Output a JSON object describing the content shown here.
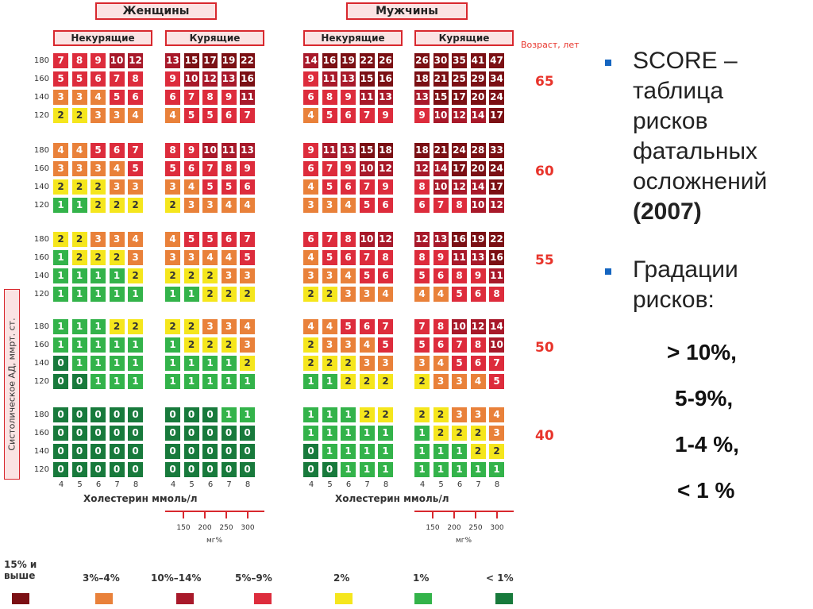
{
  "header": {
    "women": "Женщины",
    "men": "Мужчины",
    "nonsmokers": "Некурящие",
    "smokers": "Курящие",
    "age_title": "Возраст, лет"
  },
  "sbp_label": "Систолическое АД, ммрт. ст.",
  "bp_levels": [
    "180",
    "160",
    "140",
    "120"
  ],
  "chol_values": [
    "4",
    "5",
    "6",
    "7",
    "8"
  ],
  "xlabel": "Холестерин ммоль/л",
  "mg_values": [
    "150",
    "200",
    "250",
    "300"
  ],
  "mg_unit": "мг%",
  "ages": [
    "65",
    "60",
    "55",
    "50",
    "40"
  ],
  "grid": [
    {
      "age": "65",
      "women_nonsmoke": [
        [
          "7",
          "8",
          "9",
          "10",
          "12"
        ],
        [
          "5",
          "5",
          "6",
          "7",
          "8"
        ],
        [
          "3",
          "3",
          "4",
          "5",
          "6"
        ],
        [
          "2",
          "2",
          "3",
          "3",
          "4"
        ]
      ],
      "women_smoke": [
        [
          "13",
          "15",
          "17",
          "19",
          "22"
        ],
        [
          "9",
          "10",
          "12",
          "13",
          "16"
        ],
        [
          "6",
          "7",
          "8",
          "9",
          "11"
        ],
        [
          "4",
          "5",
          "5",
          "6",
          "7"
        ]
      ],
      "men_nonsmoke": [
        [
          "14",
          "16",
          "19",
          "22",
          "26"
        ],
        [
          "9",
          "11",
          "13",
          "15",
          "16"
        ],
        [
          "6",
          "8",
          "9",
          "11",
          "13"
        ],
        [
          "4",
          "5",
          "6",
          "7",
          "9"
        ]
      ],
      "men_smoke": [
        [
          "26",
          "30",
          "35",
          "41",
          "47"
        ],
        [
          "18",
          "21",
          "25",
          "29",
          "34"
        ],
        [
          "13",
          "15",
          "17",
          "20",
          "24"
        ],
        [
          "9",
          "10",
          "12",
          "14",
          "17"
        ]
      ]
    },
    {
      "age": "60",
      "women_nonsmoke": [
        [
          "4",
          "4",
          "5",
          "6",
          "7"
        ],
        [
          "3",
          "3",
          "3",
          "4",
          "5"
        ],
        [
          "2",
          "2",
          "2",
          "3",
          "3"
        ],
        [
          "1",
          "1",
          "2",
          "2",
          "2"
        ]
      ],
      "women_smoke": [
        [
          "8",
          "9",
          "10",
          "11",
          "13"
        ],
        [
          "5",
          "6",
          "7",
          "8",
          "9"
        ],
        [
          "3",
          "4",
          "5",
          "5",
          "6"
        ],
        [
          "2",
          "3",
          "3",
          "4",
          "4"
        ]
      ],
      "men_nonsmoke": [
        [
          "9",
          "11",
          "13",
          "15",
          "18"
        ],
        [
          "6",
          "7",
          "9",
          "10",
          "12"
        ],
        [
          "4",
          "5",
          "6",
          "7",
          "9"
        ],
        [
          "3",
          "3",
          "4",
          "5",
          "6"
        ]
      ],
      "men_smoke": [
        [
          "18",
          "21",
          "24",
          "28",
          "33"
        ],
        [
          "12",
          "14",
          "17",
          "20",
          "24"
        ],
        [
          "8",
          "10",
          "12",
          "14",
          "17"
        ],
        [
          "6",
          "7",
          "8",
          "10",
          "12"
        ]
      ]
    },
    {
      "age": "55",
      "women_nonsmoke": [
        [
          "2",
          "2",
          "3",
          "3",
          "4"
        ],
        [
          "1",
          "2",
          "2",
          "2",
          "3"
        ],
        [
          "1",
          "1",
          "1",
          "1",
          "2"
        ],
        [
          "1",
          "1",
          "1",
          "1",
          "1"
        ]
      ],
      "women_smoke": [
        [
          "4",
          "5",
          "5",
          "6",
          "7"
        ],
        [
          "3",
          "3",
          "4",
          "4",
          "5"
        ],
        [
          "2",
          "2",
          "2",
          "3",
          "3"
        ],
        [
          "1",
          "1",
          "2",
          "2",
          "2"
        ]
      ],
      "men_nonsmoke": [
        [
          "6",
          "7",
          "8",
          "10",
          "12"
        ],
        [
          "4",
          "5",
          "6",
          "7",
          "8"
        ],
        [
          "3",
          "3",
          "4",
          "5",
          "6"
        ],
        [
          "2",
          "2",
          "3",
          "3",
          "4"
        ]
      ],
      "men_smoke": [
        [
          "12",
          "13",
          "16",
          "19",
          "22"
        ],
        [
          "8",
          "9",
          "11",
          "13",
          "16"
        ],
        [
          "5",
          "6",
          "8",
          "9",
          "11"
        ],
        [
          "4",
          "4",
          "5",
          "6",
          "8"
        ]
      ]
    },
    {
      "age": "50",
      "women_nonsmoke": [
        [
          "1",
          "1",
          "1",
          "2",
          "2"
        ],
        [
          "1",
          "1",
          "1",
          "1",
          "1"
        ],
        [
          "0",
          "1",
          "1",
          "1",
          "1"
        ],
        [
          "0",
          "0",
          "1",
          "1",
          "1"
        ]
      ],
      "women_smoke": [
        [
          "2",
          "2",
          "3",
          "3",
          "4"
        ],
        [
          "1",
          "2",
          "2",
          "2",
          "3"
        ],
        [
          "1",
          "1",
          "1",
          "1",
          "2"
        ],
        [
          "1",
          "1",
          "1",
          "1",
          "1"
        ]
      ],
      "men_nonsmoke": [
        [
          "4",
          "4",
          "5",
          "6",
          "7"
        ],
        [
          "2",
          "3",
          "3",
          "4",
          "5"
        ],
        [
          "2",
          "2",
          "2",
          "3",
          "3"
        ],
        [
          "1",
          "1",
          "2",
          "2",
          "2"
        ]
      ],
      "men_smoke": [
        [
          "7",
          "8",
          "10",
          "12",
          "14"
        ],
        [
          "5",
          "6",
          "7",
          "8",
          "10"
        ],
        [
          "3",
          "4",
          "5",
          "6",
          "7"
        ],
        [
          "2",
          "3",
          "3",
          "4",
          "5"
        ]
      ]
    },
    {
      "age": "40",
      "women_nonsmoke": [
        [
          "0",
          "0",
          "0",
          "0",
          "0"
        ],
        [
          "0",
          "0",
          "0",
          "0",
          "0"
        ],
        [
          "0",
          "0",
          "0",
          "0",
          "0"
        ],
        [
          "0",
          "0",
          "0",
          "0",
          "0"
        ]
      ],
      "women_smoke": [
        [
          "0",
          "0",
          "0",
          "1",
          "1"
        ],
        [
          "0",
          "0",
          "0",
          "0",
          "0"
        ],
        [
          "0",
          "0",
          "0",
          "0",
          "0"
        ],
        [
          "0",
          "0",
          "0",
          "0",
          "0"
        ]
      ],
      "men_nonsmoke": [
        [
          "1",
          "1",
          "1",
          "2",
          "2"
        ],
        [
          "1",
          "1",
          "1",
          "1",
          "1"
        ],
        [
          "0",
          "1",
          "1",
          "1",
          "1"
        ],
        [
          "0",
          "0",
          "1",
          "1",
          "1"
        ]
      ],
      "men_smoke": [
        [
          "2",
          "2",
          "3",
          "3",
          "4"
        ],
        [
          "1",
          "2",
          "2",
          "2",
          "3"
        ],
        [
          "1",
          "1",
          "1",
          "2",
          "2"
        ],
        [
          "1",
          "1",
          "1",
          "1",
          "1"
        ]
      ]
    }
  ],
  "legend": [
    {
      "label": "15% и выше",
      "color": "#7b1014"
    },
    {
      "label": "3%–4%",
      "color": "#e9813a"
    },
    {
      "label": "10%–14%",
      "color": "#a8192a"
    },
    {
      "label": "5%–9%",
      "color": "#dd2c3c"
    },
    {
      "label": "2%",
      "color": "#f5e61d"
    },
    {
      "label": "1%",
      "color": "#33b34a"
    },
    {
      "label": "< 1%",
      "color": "#187a3c"
    }
  ],
  "side": {
    "bullet1_lines": [
      "SCORE –",
      "таблица",
      "рисков",
      "фатальных",
      "осложнений",
      "(2007)"
    ],
    "bullet2_lines": [
      "Градации",
      "рисков:"
    ],
    "grades": [
      "> 10%,",
      "5-9%,",
      "1-4 %,",
      "< 1 %"
    ]
  },
  "colors": {
    "very_high": "#7b1014",
    "high": "#a8192a",
    "mid": "#dd2c3c",
    "orange": "#e9813a",
    "yellow": "#f5e61d",
    "green": "#33b34a",
    "dark_green": "#187a3c",
    "accent_red": "#e8342b",
    "bullet_blue": "#1565c0"
  }
}
